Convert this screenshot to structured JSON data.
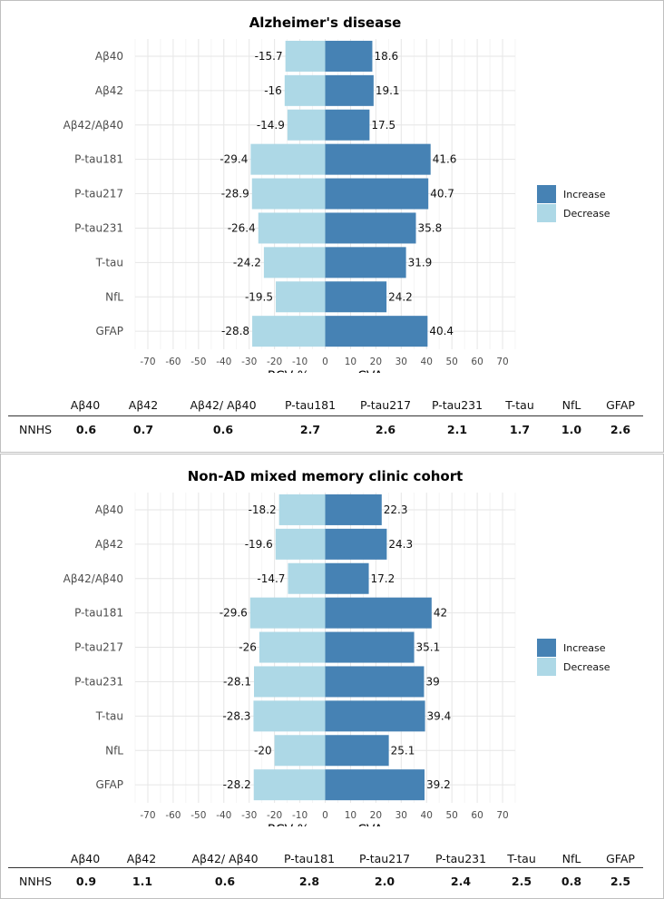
{
  "chart_data": [
    {
      "type": "bar",
      "orientation": "horizontal",
      "title": "Alzheimer's disease",
      "xlabel": "RCV %, mean CVA",
      "ylabel": "",
      "xlim": [
        -75,
        75
      ],
      "xticks": [
        -70,
        -60,
        -50,
        -40,
        -30,
        -20,
        -10,
        0,
        10,
        20,
        30,
        40,
        50,
        60,
        70
      ],
      "grid": true,
      "legend": "right",
      "categories": [
        "Aβ40",
        "Aβ42",
        "Aβ42/Aβ40",
        "P-tau181",
        "P-tau217",
        "P-tau231",
        "T-tau",
        "NfL",
        "GFAP"
      ],
      "series": [
        {
          "name": "Increase",
          "color": "#4682b4",
          "values": [
            18.6,
            19.1,
            17.5,
            41.6,
            40.7,
            35.8,
            31.9,
            24.2,
            40.4
          ]
        },
        {
          "name": "Decrease",
          "color": "#add8e6",
          "values": [
            -15.7,
            -16,
            -14.9,
            -29.4,
            -28.9,
            -26.4,
            -24.2,
            -19.5,
            -28.8
          ]
        }
      ],
      "labels": {
        "Increase": [
          "18.6",
          "19.1",
          "17.5",
          "41.6",
          "40.7",
          "35.8",
          "31.9",
          "24.2",
          "40.4"
        ],
        "Decrease": [
          "-15.7",
          "-16",
          "-14.9",
          "-29.4",
          "-28.9",
          "-26.4",
          "-24.2",
          "-19.5",
          "-28.8"
        ]
      }
    },
    {
      "type": "bar",
      "orientation": "horizontal",
      "title": "Non-AD mixed memory clinic cohort",
      "xlabel": "RCV %, mean CVA",
      "ylabel": "",
      "xlim": [
        -75,
        75
      ],
      "xticks": [
        -70,
        -60,
        -50,
        -40,
        -30,
        -20,
        -10,
        0,
        10,
        20,
        30,
        40,
        50,
        60,
        70
      ],
      "grid": true,
      "legend": "right",
      "categories": [
        "Aβ40",
        "Aβ42",
        "Aβ42/Aβ40",
        "P-tau181",
        "P-tau217",
        "P-tau231",
        "T-tau",
        "NfL",
        "GFAP"
      ],
      "series": [
        {
          "name": "Increase",
          "color": "#4682b4",
          "values": [
            22.3,
            24.3,
            17.2,
            42,
            35.1,
            39,
            39.4,
            25.1,
            39.2
          ]
        },
        {
          "name": "Decrease",
          "color": "#add8e6",
          "values": [
            -18.2,
            -19.6,
            -14.7,
            -29.6,
            -26,
            -28.1,
            -28.3,
            -20,
            -28.2
          ]
        }
      ],
      "labels": {
        "Increase": [
          "22.3",
          "24.3",
          "17.2",
          "42",
          "35.1",
          "39",
          "39.4",
          "25.1",
          "39.2"
        ],
        "Decrease": [
          "-18.2",
          "-19.6",
          "-14.7",
          "-29.6",
          "-26",
          "-28.1",
          "-28.3",
          "-20",
          "-28.2"
        ]
      }
    }
  ],
  "nnhs_tables": [
    {
      "row_label": "NNHS",
      "headers": [
        "Aβ40",
        "Aβ42",
        "Aβ42/ Aβ40",
        "P-tau181",
        "P-tau217",
        "P-tau231",
        "T-tau",
        "NfL",
        "GFAP"
      ],
      "values": [
        "0.6",
        "0.7",
        "0.6",
        "2.7",
        "2.6",
        "2.1",
        "1.7",
        "1.0",
        "2.6"
      ]
    },
    {
      "row_label": "NNHS",
      "headers": [
        "Aβ40",
        "Aβ42",
        "Aβ42/ Aβ40",
        "P-tau181",
        "P-tau217",
        "P-tau231",
        "T-tau",
        "NfL",
        "GFAP"
      ],
      "values": [
        "0.9",
        "1.1",
        "0.6",
        "2.8",
        "2.0",
        "2.4",
        "2.5",
        "0.8",
        "2.5"
      ]
    }
  ]
}
